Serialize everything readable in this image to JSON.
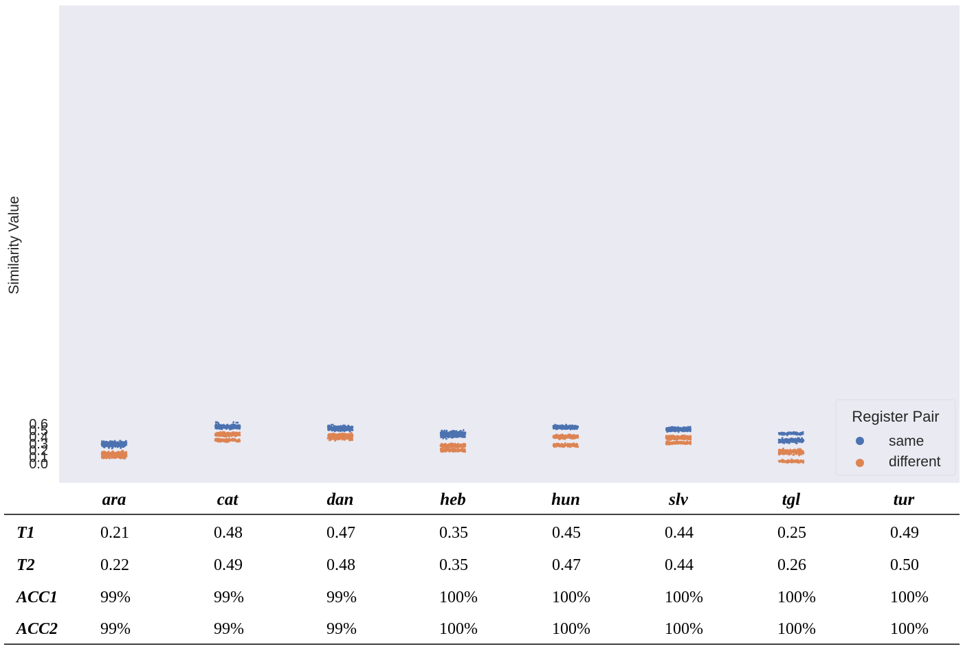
{
  "chart_data": {
    "type": "scatter",
    "style": "strip",
    "ylabel": "Similarity Value",
    "xlabel": "",
    "ylim": [
      -0.03,
      0.66
    ],
    "yticks": [
      "0.0",
      "0.1",
      "0.2",
      "0.3",
      "0.4",
      "0.5",
      "0.6"
    ],
    "grid": false,
    "categories": [
      "ara",
      "cat",
      "dan",
      "heb",
      "hun",
      "slv",
      "tgl",
      "tur"
    ],
    "legend": {
      "title": "Register Pair",
      "position": "bottom-right"
    },
    "series": [
      {
        "name": "same",
        "color": "#4c72b0",
        "clusters": [
          [
            {
              "center": 0.29,
              "min": 0.22,
              "max": 0.355,
              "n": 320
            }
          ],
          [
            {
              "center": 0.55,
              "min": 0.5,
              "max": 0.6,
              "n": 300
            },
            {
              "center": 0.615,
              "min": 0.6,
              "max": 0.635,
              "n": 6
            }
          ],
          [
            {
              "center": 0.53,
              "min": 0.48,
              "max": 0.595,
              "n": 300
            }
          ],
          [
            {
              "center": 0.44,
              "min": 0.36,
              "max": 0.52,
              "n": 300
            }
          ],
          [
            {
              "center": 0.545,
              "min": 0.505,
              "max": 0.585,
              "n": 300
            }
          ],
          [
            {
              "center": 0.515,
              "min": 0.46,
              "max": 0.56,
              "n": 300
            }
          ],
          [
            {
              "center": 0.45,
              "min": 0.42,
              "max": 0.48,
              "n": 120
            },
            {
              "center": 0.345,
              "min": 0.29,
              "max": 0.395,
              "n": 200
            }
          ],
          [
            {
              "center": 0.62,
              "min": 0.585,
              "max": 0.655,
              "n": 200
            },
            {
              "center": 0.565,
              "min": 0.53,
              "max": 0.59,
              "n": 120
            }
          ]
        ]
      },
      {
        "name": "different",
        "color": "#dd8452",
        "clusters": [
          [
            {
              "center": 0.13,
              "min": 0.065,
              "max": 0.215,
              "n": 380
            }
          ],
          [
            {
              "center": 0.44,
              "min": 0.39,
              "max": 0.485,
              "n": 230
            },
            {
              "center": 0.35,
              "min": 0.315,
              "max": 0.39,
              "n": 170
            }
          ],
          [
            {
              "center": 0.405,
              "min": 0.335,
              "max": 0.47,
              "n": 380
            }
          ],
          [
            {
              "center": 0.27,
              "min": 0.23,
              "max": 0.325,
              "n": 220
            },
            {
              "center": 0.2,
              "min": 0.16,
              "max": 0.235,
              "n": 170
            }
          ],
          [
            {
              "center": 0.405,
              "min": 0.355,
              "max": 0.45,
              "n": 220
            },
            {
              "center": 0.275,
              "min": 0.235,
              "max": 0.32,
              "n": 160
            }
          ],
          [
            {
              "center": 0.39,
              "min": 0.34,
              "max": 0.43,
              "n": 220
            },
            {
              "center": 0.31,
              "min": 0.28,
              "max": 0.345,
              "n": 160
            }
          ],
          [
            {
              "center": 0.175,
              "min": 0.115,
              "max": 0.235,
              "n": 230
            },
            {
              "center": 0.035,
              "min": 0.005,
              "max": 0.075,
              "n": 130
            }
          ],
          [
            {
              "center": 0.42,
              "min": 0.37,
              "max": 0.47,
              "n": 200
            },
            {
              "center": 0.275,
              "min": 0.24,
              "max": 0.31,
              "n": 170
            }
          ]
        ]
      }
    ]
  },
  "table": {
    "headers": [
      "ara",
      "cat",
      "dan",
      "heb",
      "hun",
      "slv",
      "tgl",
      "tur"
    ],
    "rows": [
      {
        "label": "T1",
        "values": [
          "0.21",
          "0.48",
          "0.47",
          "0.35",
          "0.45",
          "0.44",
          "0.25",
          "0.49"
        ]
      },
      {
        "label": "T2",
        "values": [
          "0.22",
          "0.49",
          "0.48",
          "0.35",
          "0.47",
          "0.44",
          "0.26",
          "0.50"
        ]
      },
      {
        "label": "ACC1",
        "values": [
          "99%",
          "99%",
          "99%",
          "100%",
          "100%",
          "100%",
          "100%",
          "100%"
        ]
      },
      {
        "label": "ACC2",
        "values": [
          "99%",
          "99%",
          "99%",
          "100%",
          "100%",
          "100%",
          "100%",
          "100%"
        ]
      }
    ]
  }
}
